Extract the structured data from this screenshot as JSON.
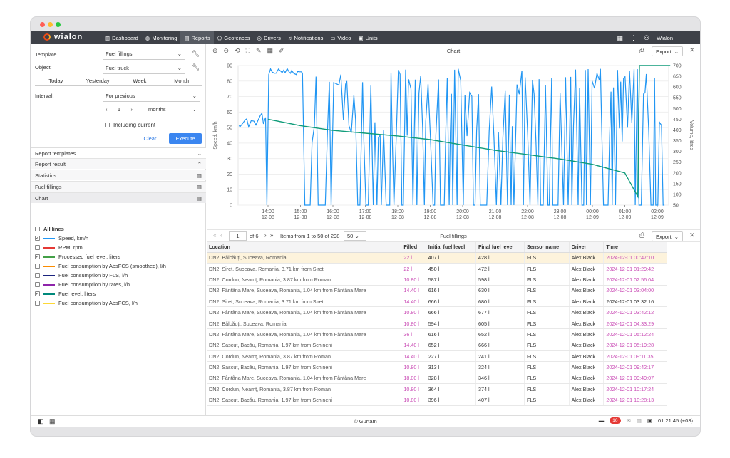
{
  "app": {
    "logo": "wialon",
    "user": "Wialon",
    "copyright": "© Gurtam",
    "clock": "01:21:45 (+03)",
    "notif_count": "10"
  },
  "nav": [
    {
      "label": "Dashboard",
      "icon": "bar-chart-icon"
    },
    {
      "label": "Monitoring",
      "icon": "globe-icon"
    },
    {
      "label": "Reports",
      "icon": "report-icon",
      "active": true
    },
    {
      "label": "Geofences",
      "icon": "geofence-icon"
    },
    {
      "label": "Drivers",
      "icon": "steering-icon"
    },
    {
      "label": "Notifications",
      "icon": "bell-icon"
    },
    {
      "label": "Video",
      "icon": "video-icon"
    },
    {
      "label": "Units",
      "icon": "bus-icon"
    }
  ],
  "form": {
    "template_label": "Template",
    "template_value": "Fuel fillings",
    "object_label": "Object:",
    "object_value": "Fuel truck",
    "quick": [
      "Today",
      "Yesterday",
      "Week",
      "Month"
    ],
    "interval_label": "Interval:",
    "interval_value": "For previous",
    "count": "1",
    "unit": "months",
    "including": "Including current",
    "clear": "Clear",
    "execute": "Execute"
  },
  "sections": {
    "templates": "Report templates",
    "result": "Report result",
    "statistics": "Statistics",
    "fuel_fillings": "Fuel fillings",
    "chart": "Chart"
  },
  "lines": {
    "all": "All lines",
    "items": [
      {
        "label": "Speed, km/h",
        "color": "#2196f3",
        "checked": true
      },
      {
        "label": "RPM, rpm",
        "color": "#e53935",
        "checked": false
      },
      {
        "label": "Processed fuel level, liters",
        "color": "#43a047",
        "checked": true
      },
      {
        "label": "Fuel consumption by AbsFCS (smoothed), l/h",
        "color": "#fb8c00",
        "checked": false
      },
      {
        "label": "Fuel consumption by FLS, l/h",
        "color": "#1a237e",
        "checked": false
      },
      {
        "label": "Fuel consumption by rates, l/h",
        "color": "#8e24aa",
        "checked": false
      },
      {
        "label": "Fuel level, liters",
        "color": "#00897b",
        "checked": true
      },
      {
        "label": "Fuel consumption by AbsFCS, l/h",
        "color": "#fdd835",
        "checked": false
      }
    ]
  },
  "chart_panel": {
    "title": "Chart",
    "export": "Export"
  },
  "chart_data": {
    "type": "line",
    "ylabel": "Speed, km/h",
    "y2label": "Volume, litres",
    "ylim": [
      0,
      90
    ],
    "y2lim": [
      50,
      700
    ],
    "yticks": [
      "0",
      "10",
      "20",
      "30",
      "40",
      "50",
      "60",
      "70",
      "80",
      "90"
    ],
    "y2ticks": [
      "50",
      "100",
      "150",
      "200",
      "250",
      "300",
      "350",
      "400",
      "450",
      "500",
      "550",
      "600",
      "650",
      "700"
    ],
    "xticks": [
      [
        "14:00",
        "12-08"
      ],
      [
        "15:00",
        "12-08"
      ],
      [
        "16:00",
        "12-08"
      ],
      [
        "17:00",
        "12-08"
      ],
      [
        "18:00",
        "12-08"
      ],
      [
        "19:00",
        "12-08"
      ],
      [
        "20:00",
        "12-08"
      ],
      [
        "21:00",
        "12-08"
      ],
      [
        "22:00",
        "12-08"
      ],
      [
        "23:00",
        "12-08"
      ],
      [
        "00:00",
        "12-09"
      ],
      [
        "01:00",
        "12-09"
      ],
      [
        "02:00",
        "12-09"
      ]
    ],
    "series": [
      {
        "color": "#2196f3",
        "values": []
      },
      {
        "color": "#109c7a",
        "points": [
          [
            0,
            450
          ],
          [
            1,
            420
          ],
          [
            2,
            398
          ],
          [
            3,
            385
          ],
          [
            4,
            372
          ],
          [
            5,
            355
          ],
          [
            6,
            330
          ],
          [
            7,
            305
          ],
          [
            8,
            285
          ],
          [
            9,
            265
          ],
          [
            10,
            240
          ],
          [
            11,
            200
          ],
          [
            11.4,
            90
          ],
          [
            11.45,
            700
          ],
          [
            12,
            700
          ],
          [
            12.4,
            700
          ]
        ]
      }
    ]
  },
  "table_panel": {
    "page": "1",
    "pages": "of 6",
    "items": "Items from 1 to 50 of 298",
    "per_page": "50",
    "title": "Fuel fillings",
    "export": "Export"
  },
  "table": {
    "columns": [
      "Location",
      "Filled",
      "Initial fuel level",
      "Final fuel level",
      "Sensor name",
      "Driver",
      "Time"
    ],
    "rows": [
      [
        "DN2, Bălcăuți, Suceava, Romania",
        "22 l",
        "407 l",
        "428 l",
        "FLS",
        "Alex Black",
        "2024-12-01 00:47:10"
      ],
      [
        "DN2, Siret, Suceava, Romania, 3.71 km from Siret",
        "22 l",
        "450 l",
        "472 l",
        "FLS",
        "Alex Black",
        "2024-12-01 01:29:42"
      ],
      [
        "DN2, Cordun, Neamț, Romania, 3.87 km from Roman",
        "10.80 l",
        "587 l",
        "598 l",
        "FLS",
        "Alex Black",
        "2024-12-01 02:56:04"
      ],
      [
        "DN2, Fântâna Mare, Suceava, Romania, 1.04 km from Fântâna Mare",
        "14.40 l",
        "616 l",
        "630 l",
        "FLS",
        "Alex Black",
        "2024-12-01 03:04:00"
      ],
      [
        "DN2, Siret, Suceava, Romania, 3.71 km from Siret",
        "14.40 l",
        "666 l",
        "680 l",
        "FLS",
        "Alex Black",
        "2024-12-01 03:32:16"
      ],
      [
        "DN2, Fântâna Mare, Suceava, Romania, 1.04 km from Fântâna Mare",
        "10.80 l",
        "666 l",
        "677 l",
        "FLS",
        "Alex Black",
        "2024-12-01 03:42:12"
      ],
      [
        "DN2, Bălcăuți, Suceava, Romania",
        "10.80 l",
        "594 l",
        "605 l",
        "FLS",
        "Alex Black",
        "2024-12-01 04:33:29"
      ],
      [
        "DN2, Fântâna Mare, Suceava, Romania, 1.04 km from Fântâna Mare",
        "36 l",
        "616 l",
        "652 l",
        "FLS",
        "Alex Black",
        "2024-12-01 05:12:24"
      ],
      [
        "DN2, Sascut, Bacău, Romania, 1.97 km from Schineni",
        "14.40 l",
        "652 l",
        "666 l",
        "FLS",
        "Alex Black",
        "2024-12-01 05:19:28"
      ],
      [
        "DN2, Cordun, Neamț, Romania, 3.87 km from Roman",
        "14.40 l",
        "227 l",
        "241 l",
        "FLS",
        "Alex Black",
        "2024-12-01 09:11:35"
      ],
      [
        "DN2, Sascut, Bacău, Romania, 1.97 km from Schineni",
        "10.80 l",
        "313 l",
        "324 l",
        "FLS",
        "Alex Black",
        "2024-12-01 09:42:17"
      ],
      [
        "DN2, Fântâna Mare, Suceava, Romania, 1.04 km from Fântâna Mare",
        "18.00 l",
        "328 l",
        "346 l",
        "FLS",
        "Alex Black",
        "2024-12-01 09:49:07"
      ],
      [
        "DN2, Cordun, Neamț, Romania, 3.87 km from Roman",
        "10.80 l",
        "364 l",
        "374 l",
        "FLS",
        "Alex Black",
        "2024-12-01 10:17:24"
      ],
      [
        "DN2, Sascut, Bacău, Romania, 1.97 km from Schineni",
        "10.80 l",
        "396 l",
        "407 l",
        "FLS",
        "Alex Black",
        "2024-12-01 10:28:13"
      ]
    ]
  }
}
